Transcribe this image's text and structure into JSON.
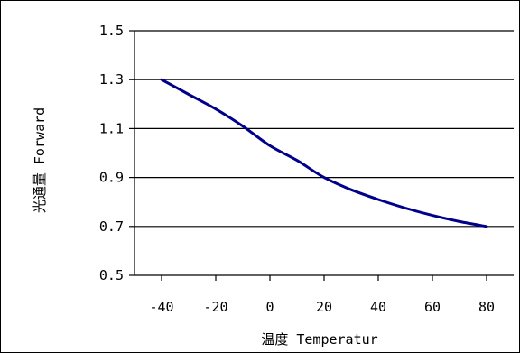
{
  "chart_data": {
    "type": "line",
    "title": "",
    "xlabel": "温度 Temperatur",
    "ylabel": "光通量 Forward",
    "x_ticks": [
      -40,
      -20,
      0,
      20,
      40,
      60,
      80
    ],
    "y_ticks": [
      0.5,
      0.7,
      0.9,
      1.1,
      1.3,
      1.5
    ],
    "xlim": [
      -50,
      90
    ],
    "ylim": [
      0.5,
      1.5
    ],
    "grid": "horizontal",
    "legend": "none",
    "series": [
      {
        "color": "#00008b",
        "x": [
          -40,
          -30,
          -20,
          -10,
          0,
          10,
          20,
          30,
          40,
          50,
          60,
          70,
          80
        ],
        "y": [
          1.3,
          1.24,
          1.18,
          1.11,
          1.03,
          0.97,
          0.9,
          0.85,
          0.81,
          0.775,
          0.745,
          0.72,
          0.7
        ]
      }
    ],
    "colors": {
      "line": "#00008b",
      "grid": "#000000",
      "axis": "#000000"
    }
  }
}
